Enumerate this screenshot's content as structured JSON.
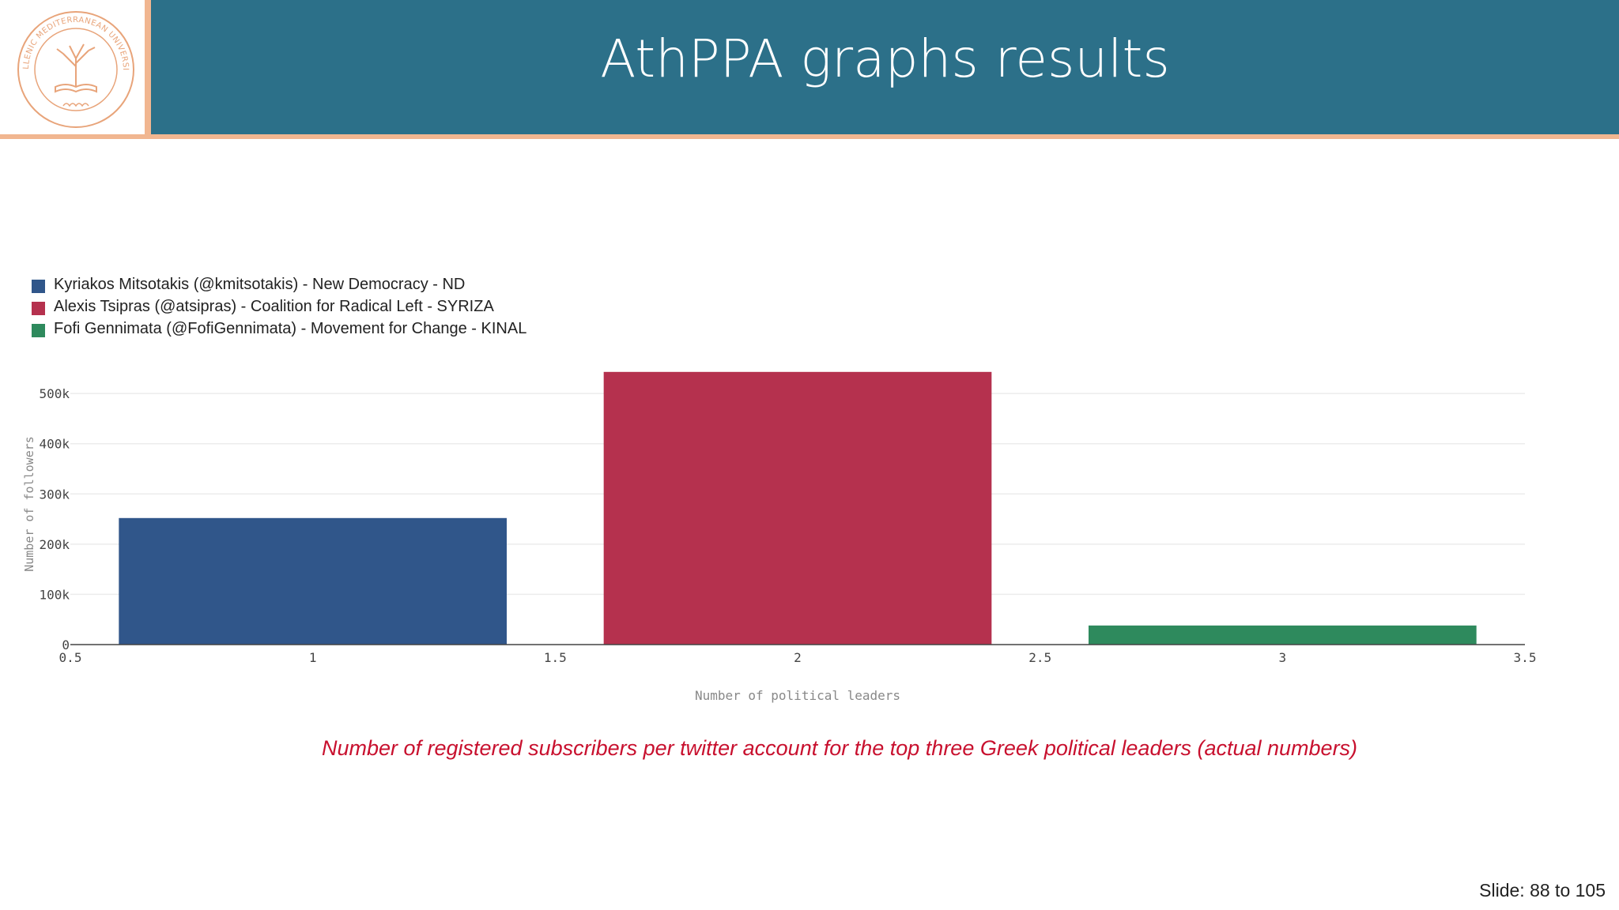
{
  "header": {
    "title": "AthPPA graphs results"
  },
  "logo": {
    "text": "HELLENIC MEDITERRANEAN UNIVERSITY"
  },
  "colors": {
    "header_bg": "#2c7089",
    "accent": "#f1b690",
    "caption": "#c8102e",
    "logo": "#e8a47a"
  },
  "chart_data": {
    "type": "bar",
    "x": [
      1,
      2,
      3
    ],
    "values": [
      252000,
      543000,
      38000
    ],
    "series": [
      {
        "name": "Kyriakos Mitsotakis (@kmitsotakis) - New Democracy - ND",
        "x": 1,
        "value": 252000,
        "color": "#30568a"
      },
      {
        "name": "Alexis Tsipras (@atsipras) - Coalition for Radical Left - SYRIZA",
        "x": 2,
        "value": 543000,
        "color": "#b5314e"
      },
      {
        "name": "Fofi Gennimata (@FofiGennimata) - Movement for Change - KINAL",
        "x": 3,
        "value": 38000,
        "color": "#2e8a5d"
      }
    ],
    "bar_width": 0.8,
    "xlim": [
      0.5,
      3.5
    ],
    "ylim": [
      0,
      560000
    ],
    "x_ticks": [
      "0.5",
      "1",
      "1.5",
      "2",
      "2.5",
      "3",
      "3.5"
    ],
    "x_tick_values": [
      0.5,
      1,
      1.5,
      2,
      2.5,
      3,
      3.5
    ],
    "y_ticks": [
      "0",
      "100k",
      "200k",
      "300k",
      "400k",
      "500k"
    ],
    "y_tick_values": [
      0,
      100000,
      200000,
      300000,
      400000,
      500000
    ],
    "xlabel": "Number of political leaders",
    "ylabel": "Number of followers",
    "grid": true,
    "legend": "top-left"
  },
  "caption": "Number of registered subscribers per twitter account for the top three Greek political leaders (actual numbers)",
  "footer": {
    "slide_label": "Slide:  88  to 105"
  }
}
